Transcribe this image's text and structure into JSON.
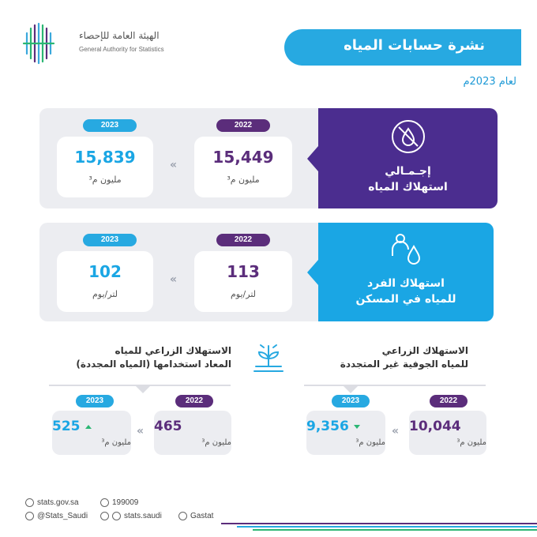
{
  "header": {
    "org_name_ar": "الهيئة العامة للإحصاء",
    "org_name_en": "General Authority for Statistics",
    "title": "نشرة حسابات المياه",
    "year_line": "لعام 2023م"
  },
  "colors": {
    "purple": "#4b2d8f",
    "blue": "#1aa6e4",
    "green": "#2bb673"
  },
  "total_consumption": {
    "label_line1": "إجـمـالي",
    "label_line2": "استهلاك المياه",
    "icon": "water-drop-circle-icon",
    "values": [
      {
        "year": "2022",
        "value": "15,449",
        "unit": "مليون م³"
      },
      {
        "year": "2023",
        "value": "15,839",
        "unit": "مليون م³"
      }
    ]
  },
  "per_capita": {
    "label_line1": "استهلاك الفرد",
    "label_line2": "للمياه في المسكن",
    "icon": "person-drop-icon",
    "values": [
      {
        "year": "2022",
        "value": "113",
        "unit": "لتر/يوم"
      },
      {
        "year": "2023",
        "value": "102",
        "unit": "لتر/يوم"
      }
    ]
  },
  "agri_renewed": {
    "title_line1": "الاستهلاك الزراعي للمياه",
    "title_line2": "المعاد استخدامها (المياه المجددة)",
    "trend": "up",
    "values": [
      {
        "year": "2022",
        "value": "465",
        "unit": "مليون م³"
      },
      {
        "year": "2023",
        "value": "525",
        "unit": "مليون م³"
      }
    ]
  },
  "agri_groundwater": {
    "title_line1": "الاستهلاك الزراعي",
    "title_line2": "للمياه الجوفية غير المتجددة",
    "icon": "irrigation-plant-icon",
    "trend": "down",
    "values": [
      {
        "year": "2022",
        "value": "10,044",
        "unit": "مليون م³"
      },
      {
        "year": "2023",
        "value": "9,356",
        "unit": "مليون م³"
      }
    ]
  },
  "footer": {
    "website": "stats.gov.sa",
    "phone": "199009",
    "twitter": "@Stats_Saudi",
    "social": "stats.saudi",
    "linkedin": "Gastat"
  }
}
